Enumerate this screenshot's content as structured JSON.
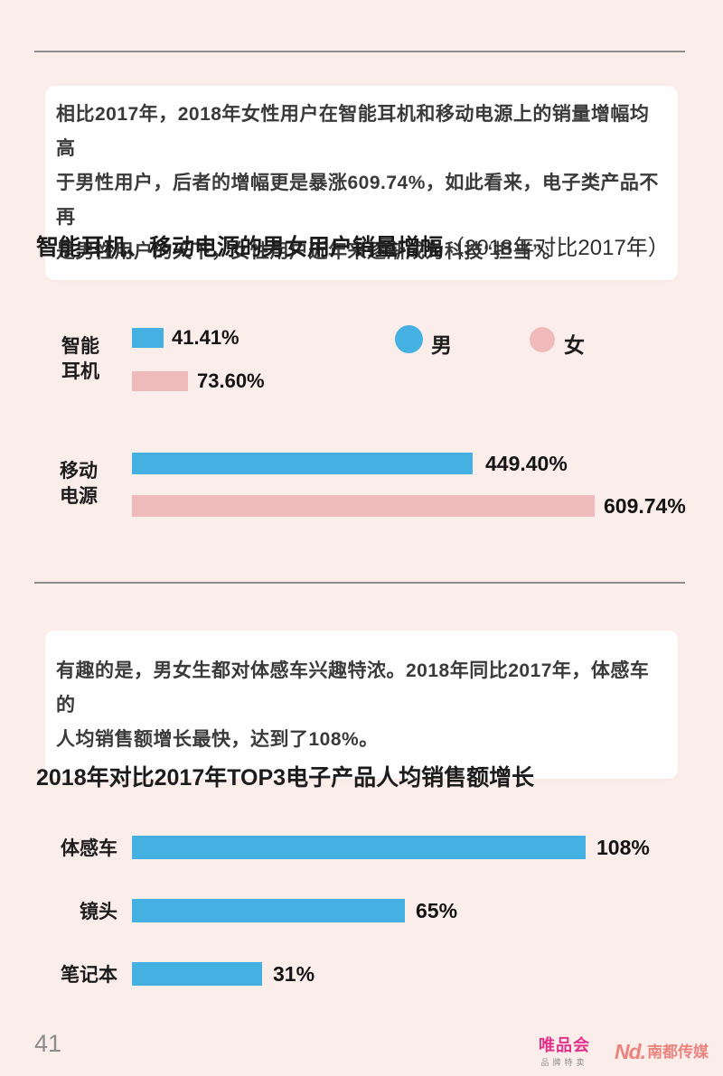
{
  "page": {
    "background": "#fbedea",
    "page_number": "41"
  },
  "colors": {
    "male": "#45b1e2",
    "female": "#f0b9ba",
    "bar_blue": "#45b1e2"
  },
  "intro1": {
    "text": "相比2017年，2018年女性用户在智能耳机和移动电源上的销量增幅均高\n于男性用户，后者的增幅更是暴涨609.74%，如此看来，电子类产品不再\n是男性用户的天下，女性用户近年来逐渐成为科技“担当”。"
  },
  "section1": {
    "title": "智能耳机、移动电源的男女用户销量增幅",
    "subtitle": "（2018年对比2017年）"
  },
  "legend": {
    "male": "男",
    "female": "女"
  },
  "chart1": {
    "groups": [
      {
        "label_lines": "智能\n耳机",
        "male_value": 41.41,
        "male_label": "41.41%",
        "female_value": 73.6,
        "female_label": "73.60%"
      },
      {
        "label_lines": "移动\n电源",
        "male_value": 449.4,
        "male_label": "449.40%",
        "female_value": 609.74,
        "female_label": "609.74%"
      }
    ]
  },
  "intro2": {
    "text": "有趣的是，男女生都对体感车兴趣特浓。2018年同比2017年，体感车的\n人均销售额增长最快，达到了108%。"
  },
  "section2": {
    "title": "2018年对比2017年TOP3电子产品人均销售额增长"
  },
  "chart2": {
    "rows": [
      {
        "label": "体感车",
        "value": 108,
        "value_label": "108%"
      },
      {
        "label": "镜头",
        "value": 65,
        "value_label": "65%"
      },
      {
        "label": "笔记本",
        "value": 31,
        "value_label": "31%"
      }
    ]
  },
  "footer": {
    "page_number": "41",
    "vip_logo": "唯品会",
    "vip_sub": "品牌特卖",
    "nd_mark": "Nd.",
    "nd_text": "南都传媒"
  },
  "chart_data": [
    {
      "type": "bar",
      "orientation": "horizontal",
      "title": "智能耳机、移动电源的男女用户销量增幅（2018年对比2017年）",
      "categories": [
        "智能耳机",
        "移动电源"
      ],
      "series": [
        {
          "name": "男",
          "values": [
            41.41,
            449.4
          ],
          "color": "#45b1e2"
        },
        {
          "name": "女",
          "values": [
            73.6,
            609.74
          ],
          "color": "#f0b9ba"
        }
      ],
      "unit": "%",
      "data_labels": [
        [
          "41.41%",
          "449.40%"
        ],
        [
          "73.60%",
          "609.74%"
        ]
      ],
      "legend_position": "top-right",
      "grid": false,
      "xlim": [
        0,
        640
      ]
    },
    {
      "type": "bar",
      "orientation": "horizontal",
      "title": "2018年对比2017年TOP3电子产品人均销售额增长",
      "categories": [
        "体感车",
        "镜头",
        "笔记本"
      ],
      "values": [
        108,
        65,
        31
      ],
      "data_labels": [
        "108%",
        "65%",
        "31%"
      ],
      "unit": "%",
      "color": "#45b1e2",
      "grid": false,
      "xlim": [
        0,
        120
      ]
    }
  ]
}
